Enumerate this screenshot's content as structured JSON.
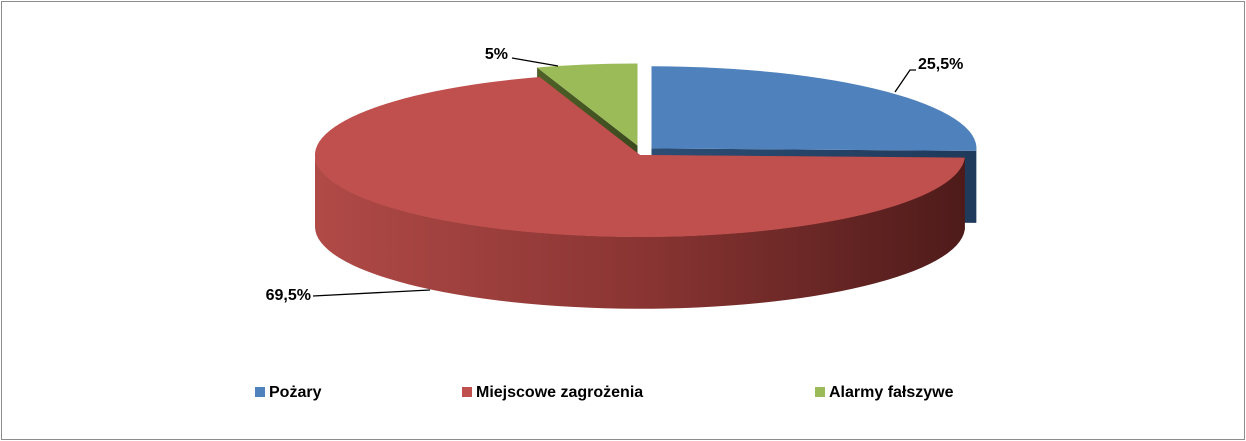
{
  "chart_data": {
    "type": "pie",
    "categories": [
      "Pożary",
      "Miejscowe zagrożenia",
      "Alarmy fałszywe"
    ],
    "values": [
      25.5,
      69.5,
      5
    ],
    "value_labels": [
      "25,5%",
      "69,5%",
      "5%"
    ],
    "colors": [
      "#4f81bd",
      "#c0504d",
      "#9bbb59"
    ],
    "legend": "bottom"
  }
}
